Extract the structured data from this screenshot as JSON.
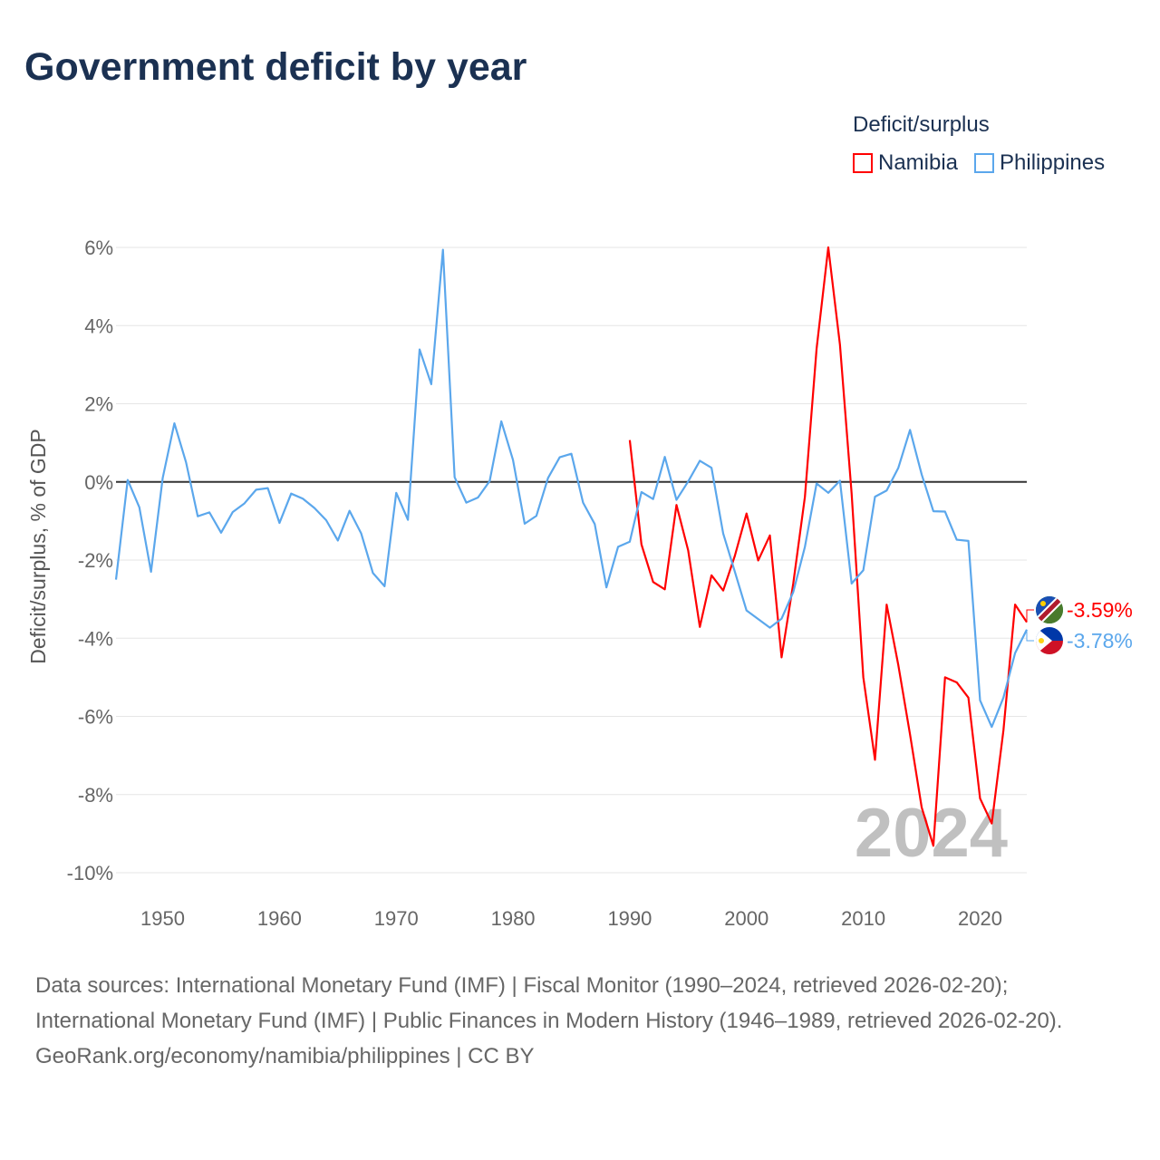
{
  "title": "Government deficit by year",
  "legend": {
    "title": "Deficit/surplus",
    "items": [
      {
        "name": "Namibia",
        "color": "#ff0000"
      },
      {
        "name": "Philippines",
        "color": "#5ba7ec"
      }
    ]
  },
  "footer": {
    "sources": "Data sources: International Monetary Fund (IMF) | Fiscal Monitor (1990–2024, retrieved 2026-02-20); International Monetary Fund (IMF) | Public Finances in Modern History (1946–1989, retrieved 2026-02-20).",
    "credit": "GeoRank.org/economy/namibia/philippines | CC BY"
  },
  "chart_data": {
    "type": "line",
    "title": "Government deficit by year",
    "xlabel": "",
    "ylabel": "Deficit/surplus, % of GDP",
    "xlim": [
      1946,
      2024
    ],
    "ylim": [
      -10,
      6
    ],
    "yticks": [
      6,
      4,
      2,
      0,
      -2,
      -4,
      -6,
      -8,
      -10
    ],
    "ytick_labels": [
      "6%",
      "4%",
      "2%",
      "0%",
      "-2%",
      "-4%",
      "-6%",
      "-8%",
      "-10%"
    ],
    "xticks": [
      1950,
      1960,
      1970,
      1980,
      1990,
      2000,
      2010,
      2020
    ],
    "xtick_labels": [
      "1950",
      "1960",
      "1970",
      "1980",
      "1990",
      "2000",
      "2010",
      "2020"
    ],
    "grid": true,
    "legend_position": "top-right",
    "year_watermark": "2024",
    "series": [
      {
        "name": "Namibia",
        "color": "#ff0000",
        "start_year": 1990,
        "end_label": "-3.59%",
        "values": [
          1.07,
          -1.6,
          -2.56,
          -2.75,
          -0.59,
          -1.75,
          -3.71,
          -2.39,
          -2.78,
          -1.89,
          -0.81,
          -2.01,
          -1.37,
          -4.49,
          -2.6,
          -0.38,
          3.41,
          6.0,
          3.51,
          -0.3,
          -5.0,
          -7.11,
          -3.14,
          -4.69,
          -6.46,
          -8.33,
          -9.31,
          -5.0,
          -5.13,
          -5.52,
          -8.1,
          -8.74,
          -6.36,
          -3.14,
          -3.59
        ]
      },
      {
        "name": "Philippines",
        "color": "#5ba7ec",
        "start_year": 1946,
        "end_label": "-3.78%",
        "values": [
          -2.5,
          0.05,
          -0.65,
          -2.3,
          0.1,
          1.5,
          0.5,
          -0.88,
          -0.78,
          -1.3,
          -0.77,
          -0.55,
          -0.2,
          -0.16,
          -1.05,
          -0.3,
          -0.43,
          -0.67,
          -0.98,
          -1.5,
          -0.74,
          -1.32,
          -2.33,
          -2.67,
          -0.28,
          -0.97,
          3.39,
          2.5,
          5.94,
          0.12,
          -0.53,
          -0.4,
          0.02,
          1.55,
          0.56,
          -1.07,
          -0.87,
          0.1,
          0.63,
          0.72,
          -0.53,
          -1.08,
          -2.7,
          -1.66,
          -1.53,
          -0.26,
          -0.44,
          0.64,
          -0.46,
          0.01,
          0.54,
          0.36,
          -1.32,
          -2.3,
          -3.29,
          -3.51,
          -3.73,
          -3.5,
          -2.82,
          -1.66,
          -0.04,
          -0.28,
          0.03,
          -2.6,
          -2.26,
          -0.38,
          -0.22,
          0.36,
          1.33,
          0.19,
          -0.75,
          -0.76,
          -1.48,
          -1.51,
          -5.59,
          -6.27,
          -5.52,
          -4.38,
          -3.78
        ]
      }
    ]
  }
}
